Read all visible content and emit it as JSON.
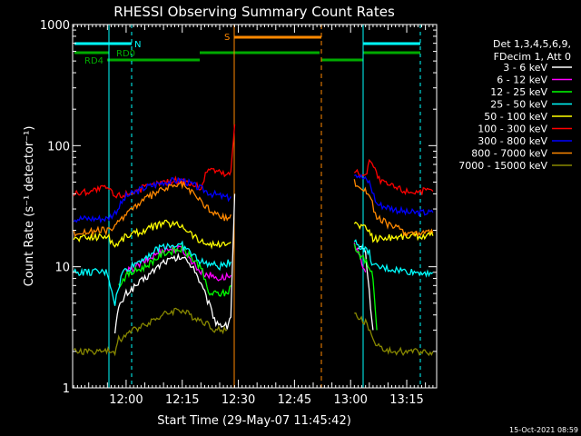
{
  "chart_data": {
    "type": "line",
    "title": "RHESSI Observing Summary Count Rates",
    "xlabel": "Start Time (29-May-07 11:45:42)",
    "ylabel": "Count Rate (s⁻¹ detector⁻¹)",
    "y_scale": "log",
    "ylim": [
      1,
      1000
    ],
    "y_ticks": [
      {
        "value": 1,
        "label": "1"
      },
      {
        "value": 10,
        "label": "10"
      },
      {
        "value": 100,
        "label": "100"
      },
      {
        "value": 1000,
        "label": "1000"
      }
    ],
    "x_start": "11:45:42",
    "xlim": [
      "11:45:42",
      "13:23:00"
    ],
    "x_ticks": [
      "12:00",
      "12:15",
      "12:30",
      "12:45",
      "13:00",
      "13:15"
    ],
    "legend": {
      "placement": "right",
      "header": [
        "Det 1,3,4,5,6,9,",
        "FDecim 1, Att 0"
      ]
    },
    "series": [
      {
        "name": "3 - 6 keV",
        "color": "#ffffff",
        "points": [
          [
            "11:57",
            3
          ],
          [
            "11:58",
            4.5
          ],
          [
            "12:00",
            6
          ],
          [
            "12:05",
            8
          ],
          [
            "12:10",
            11
          ],
          [
            "12:15",
            12
          ],
          [
            "12:18",
            10
          ],
          [
            "12:21",
            6
          ],
          [
            "12:24",
            3.5
          ],
          [
            "12:27",
            3.2
          ],
          [
            "12:28",
            4
          ],
          [
            "12:29",
            40
          ],
          [
            "13:02",
            15
          ],
          [
            "13:04",
            13
          ],
          [
            "13:05",
            6
          ],
          [
            "13:06",
            3
          ]
        ]
      },
      {
        "name": "6 - 12 keV",
        "color": "#ff00ff",
        "points": [
          [
            "12:00",
            9
          ],
          [
            "12:05",
            11
          ],
          [
            "12:10",
            14
          ],
          [
            "12:15",
            14
          ],
          [
            "12:20",
            9
          ],
          [
            "12:25",
            8
          ],
          [
            "12:28",
            8.5
          ],
          [
            "13:01",
            15
          ],
          [
            "13:03",
            11
          ],
          [
            "13:04",
            9
          ]
        ]
      },
      {
        "name": "12 - 25 keV",
        "color": "#00ff00",
        "points": [
          [
            "11:58",
            7
          ],
          [
            "12:00",
            8.5
          ],
          [
            "12:05",
            10
          ],
          [
            "12:10",
            13
          ],
          [
            "12:15",
            14
          ],
          [
            "12:20",
            10
          ],
          [
            "12:22",
            6
          ],
          [
            "12:27",
            6
          ],
          [
            "12:28",
            7
          ],
          [
            "13:01",
            15
          ],
          [
            "13:03",
            12
          ],
          [
            "13:05",
            10
          ],
          [
            "13:06",
            8
          ],
          [
            "13:07",
            3
          ]
        ]
      },
      {
        "name": "25 - 50 keV",
        "color": "#00ffff",
        "points": [
          [
            "11:46",
            9
          ],
          [
            "11:55",
            9
          ],
          [
            "11:57",
            5
          ],
          [
            "11:59",
            9
          ],
          [
            "12:05",
            12
          ],
          [
            "12:10",
            15
          ],
          [
            "12:15",
            15
          ],
          [
            "12:20",
            11
          ],
          [
            "12:25",
            10
          ],
          [
            "12:28",
            11
          ],
          [
            "13:01",
            16
          ],
          [
            "13:05",
            13
          ],
          [
            "13:06",
            10
          ],
          [
            "13:17",
            9
          ],
          [
            "13:22",
            9
          ]
        ]
      },
      {
        "name": "50 - 100 keV",
        "color": "#ffff00",
        "points": [
          [
            "11:46",
            17
          ],
          [
            "11:55",
            18
          ],
          [
            "11:57",
            15
          ],
          [
            "12:00",
            18
          ],
          [
            "12:05",
            20
          ],
          [
            "12:10",
            23
          ],
          [
            "12:15",
            22
          ],
          [
            "12:20",
            16
          ],
          [
            "12:25",
            15
          ],
          [
            "12:28",
            16
          ],
          [
            "13:01",
            23
          ],
          [
            "13:05",
            20
          ],
          [
            "13:06",
            17
          ],
          [
            "13:15",
            18
          ],
          [
            "13:22",
            18
          ]
        ]
      },
      {
        "name": "100 - 300 keV",
        "color": "#ff0000",
        "points": [
          [
            "11:46",
            40
          ],
          [
            "11:55",
            45
          ],
          [
            "11:57",
            38
          ],
          [
            "12:00",
            40
          ],
          [
            "12:05",
            45
          ],
          [
            "12:10",
            50
          ],
          [
            "12:15",
            52
          ],
          [
            "12:20",
            45
          ],
          [
            "12:22",
            66
          ],
          [
            "12:27",
            57
          ],
          [
            "12:28",
            60
          ],
          [
            "12:29",
            150
          ],
          [
            "13:01",
            62
          ],
          [
            "13:04",
            55
          ],
          [
            "13:05",
            80
          ],
          [
            "13:08",
            50
          ],
          [
            "13:15",
            42
          ],
          [
            "13:22",
            42
          ]
        ]
      },
      {
        "name": "300 - 800 keV",
        "color": "#0000ff",
        "points": [
          [
            "11:46",
            25
          ],
          [
            "11:55",
            25
          ],
          [
            "11:57",
            28
          ],
          [
            "12:00",
            38
          ],
          [
            "12:05",
            45
          ],
          [
            "12:10",
            50
          ],
          [
            "12:15",
            52
          ],
          [
            "12:20",
            44
          ],
          [
            "12:23",
            40
          ],
          [
            "12:27",
            37
          ],
          [
            "12:28",
            38
          ],
          [
            "13:01",
            60
          ],
          [
            "13:05",
            50
          ],
          [
            "13:07",
            33
          ],
          [
            "13:15",
            28
          ],
          [
            "13:22",
            28
          ]
        ]
      },
      {
        "name": "800 - 7000 keV",
        "color": "#ff8800",
        "points": [
          [
            "11:46",
            19
          ],
          [
            "11:55",
            20
          ],
          [
            "11:57",
            21
          ],
          [
            "12:00",
            28
          ],
          [
            "12:05",
            36
          ],
          [
            "12:10",
            44
          ],
          [
            "12:15",
            48
          ],
          [
            "12:20",
            35
          ],
          [
            "12:23",
            28
          ],
          [
            "12:27",
            25
          ],
          [
            "12:28",
            27
          ],
          [
            "13:01",
            50
          ],
          [
            "13:05",
            40
          ],
          [
            "13:07",
            25
          ],
          [
            "13:15",
            19
          ],
          [
            "13:22",
            19
          ]
        ]
      },
      {
        "name": "7000 - 15000 keV",
        "color": "#888800",
        "points": [
          [
            "11:46",
            2
          ],
          [
            "11:57",
            2
          ],
          [
            "11:58",
            2.5
          ],
          [
            "12:02",
            3
          ],
          [
            "12:06",
            3.5
          ],
          [
            "12:10",
            4
          ],
          [
            "12:14",
            4.5
          ],
          [
            "12:17",
            4
          ],
          [
            "12:21",
            3.5
          ],
          [
            "12:24",
            3
          ],
          [
            "12:27",
            3
          ],
          [
            "13:01",
            4
          ],
          [
            "13:04",
            3.5
          ],
          [
            "13:06",
            2.5
          ],
          [
            "13:09",
            2
          ],
          [
            "13:22",
            2
          ]
        ]
      }
    ],
    "annotations": [
      {
        "label": "N",
        "color": "#00ffff"
      },
      {
        "label": "RD0",
        "color": "#00aa00"
      },
      {
        "label": "RD4",
        "color": "#00aa00"
      },
      {
        "label": "S",
        "color": "#ff8800"
      }
    ],
    "timestamp": "15-Oct-2021 08:59"
  }
}
